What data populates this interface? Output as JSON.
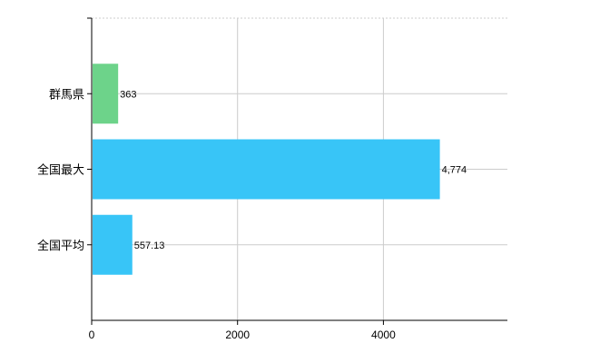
{
  "chart_data": {
    "type": "bar",
    "orientation": "horizontal",
    "categories": [
      "群馬県",
      "全国最大",
      "全国平均"
    ],
    "values": [
      363,
      4774,
      557.13
    ],
    "value_labels": [
      "363",
      "4,774",
      "557.13"
    ],
    "colors": [
      "#6dd38a",
      "#38c5f7",
      "#38c5f7"
    ],
    "title": "",
    "xlabel": "",
    "ylabel": "",
    "xlim": [
      0,
      5700
    ],
    "x_ticks": [
      0,
      2000,
      4000
    ],
    "x_tick_labels": [
      "0",
      "2000",
      "4000"
    ],
    "grid": true,
    "legend": "none"
  }
}
